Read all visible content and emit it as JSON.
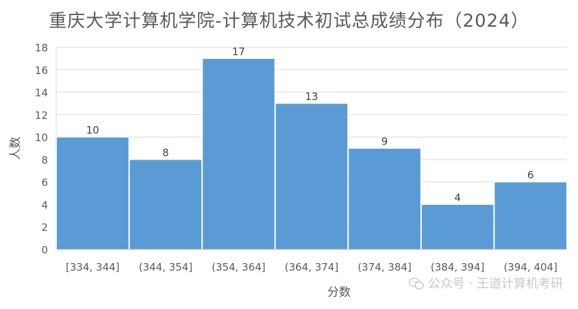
{
  "chart_data": {
    "type": "bar",
    "title": "重庆大学计算机学院-计算机技术初试总成绩分布（2024）",
    "xlabel": "分数",
    "ylabel": "人数",
    "categories": [
      "[334, 344]",
      "(344, 354]",
      "(354, 364]",
      "(364, 374]",
      "(374, 384]",
      "(384, 394]",
      "(394, 404]"
    ],
    "values": [
      10,
      8,
      17,
      13,
      9,
      4,
      6
    ],
    "ylim": [
      0,
      18
    ],
    "yticks": [
      0,
      2,
      4,
      6,
      8,
      10,
      12,
      14,
      16,
      18
    ],
    "grid": true,
    "bar_color": "#5b9bd5",
    "data_labels": true
  },
  "watermark": {
    "text": "公众号 · 王道计算机考研",
    "icon": "wechat-icon"
  }
}
